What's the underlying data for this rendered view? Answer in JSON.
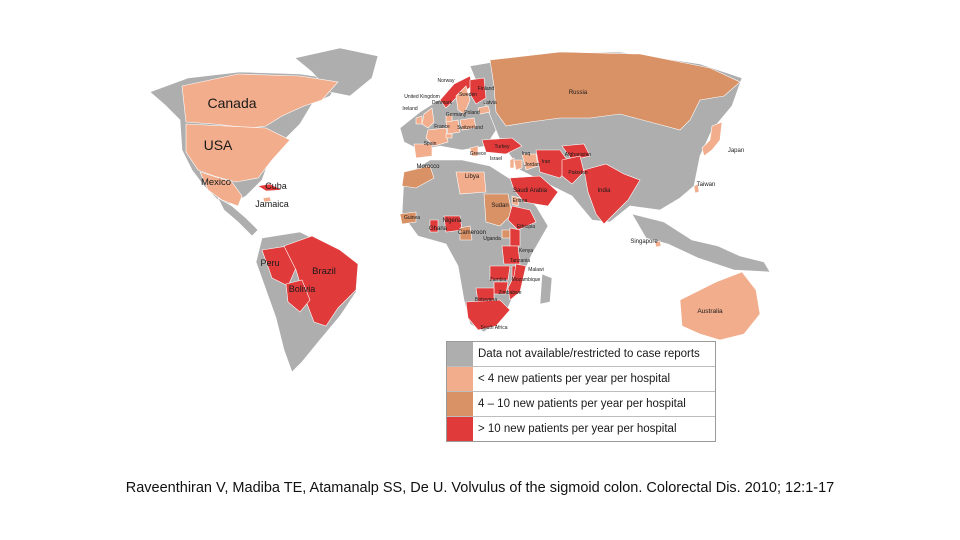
{
  "colors": {
    "no_data": "#aeaeae",
    "low": "#f2ad8c",
    "mid": "#d99166",
    "high": "#e03a3a",
    "ocean": "#ffffff"
  },
  "countries": [
    {
      "key": "canada",
      "label": "Canada",
      "category": "low"
    },
    {
      "key": "usa",
      "label": "USA",
      "category": "low"
    },
    {
      "key": "mexico",
      "label": "Mexico",
      "category": "low"
    },
    {
      "key": "cuba",
      "label": "Cuba",
      "category": "high"
    },
    {
      "key": "jamaica",
      "label": "Jamaica",
      "category": "low"
    },
    {
      "key": "peru",
      "label": "Peru",
      "category": "high"
    },
    {
      "key": "brazil",
      "label": "Brazil",
      "category": "high"
    },
    {
      "key": "bolivia",
      "label": "Bolivia",
      "category": "high"
    },
    {
      "key": "norway",
      "label": "Norway",
      "category": "high"
    },
    {
      "key": "finland",
      "label": "Finland",
      "category": "high"
    },
    {
      "key": "sweden",
      "label": "Sweden",
      "category": "low"
    },
    {
      "key": "united_kingdom",
      "label": "United Kingdom",
      "category": "low"
    },
    {
      "key": "ireland",
      "label": "Ireland",
      "category": "low"
    },
    {
      "key": "denmark",
      "label": "Denmark",
      "category": "low"
    },
    {
      "key": "latvia",
      "label": "Latvia",
      "category": "low"
    },
    {
      "key": "germany",
      "label": "Germany",
      "category": "low"
    },
    {
      "key": "poland",
      "label": "Poland",
      "category": "low"
    },
    {
      "key": "france",
      "label": "France",
      "category": "low"
    },
    {
      "key": "switzerland",
      "label": "Switzerland",
      "category": "low"
    },
    {
      "key": "spain",
      "label": "Spain",
      "category": "low"
    },
    {
      "key": "greece",
      "label": "Greece",
      "category": "low"
    },
    {
      "key": "turkey",
      "label": "Turkey",
      "category": "high"
    },
    {
      "key": "israel",
      "label": "Israel",
      "category": "low"
    },
    {
      "key": "jordan",
      "label": "Jordan",
      "category": "low"
    },
    {
      "key": "iran",
      "label": "Iran",
      "category": "high"
    },
    {
      "key": "iraq",
      "label": "Iraq",
      "category": "low"
    },
    {
      "key": "afghanistan",
      "label": "Afghanistan",
      "category": "high"
    },
    {
      "key": "pakistan",
      "label": "Pakistan",
      "category": "high"
    },
    {
      "key": "india",
      "label": "India",
      "category": "high"
    },
    {
      "key": "russia",
      "label": "Russia",
      "category": "mid"
    },
    {
      "key": "japan",
      "label": "Japan",
      "category": "low"
    },
    {
      "key": "taiwan",
      "label": "Taiwan",
      "category": "low"
    },
    {
      "key": "singapore",
      "label": "Singapore",
      "category": "low"
    },
    {
      "key": "morocco",
      "label": "Morocco",
      "category": "mid"
    },
    {
      "key": "libya",
      "label": "Libya",
      "category": "low"
    },
    {
      "key": "saudi_arabia",
      "label": "Saudi Arabia",
      "category": "high"
    },
    {
      "key": "sudan",
      "label": "Sudan",
      "category": "mid"
    },
    {
      "key": "eritrea",
      "label": "Eritrea",
      "category": "low"
    },
    {
      "key": "ethiopia",
      "label": "Ethiopia",
      "category": "high"
    },
    {
      "key": "guinea",
      "label": "Guinea",
      "category": "mid"
    },
    {
      "key": "ghana",
      "label": "Ghana",
      "category": "high"
    },
    {
      "key": "nigeria",
      "label": "Nigeria",
      "category": "high"
    },
    {
      "key": "cameroon",
      "label": "Cameroon",
      "category": "mid"
    },
    {
      "key": "uganda",
      "label": "Uganda",
      "category": "mid"
    },
    {
      "key": "kenya",
      "label": "Kenya",
      "category": "high"
    },
    {
      "key": "tanzania",
      "label": "Tanzania",
      "category": "high"
    },
    {
      "key": "malawi",
      "label": "Malawi",
      "category": "high"
    },
    {
      "key": "zambia",
      "label": "Zambia",
      "category": "high"
    },
    {
      "key": "mozambique",
      "label": "Mozambique",
      "category": "high"
    },
    {
      "key": "zimbabwe",
      "label": "Zimbabwe",
      "category": "high"
    },
    {
      "key": "botswana",
      "label": "Botswana",
      "category": "high"
    },
    {
      "key": "south_africa",
      "label": "South Africa",
      "category": "high"
    },
    {
      "key": "australia",
      "label": "Australia",
      "category": "low"
    }
  ],
  "legend": [
    {
      "category": "no_data",
      "label": "Data not available/restricted to case reports"
    },
    {
      "category": "low",
      "label": "< 4 new patients per year per hospital"
    },
    {
      "category": "mid",
      "label": "4 – 10 new patients per year per hospital"
    },
    {
      "category": "high",
      "label": "> 10 new patients per year per hospital"
    }
  ],
  "citation": "Raveenthiran V, Madiba TE, Atamanalp SS, De U. Volvulus of the sigmoid colon.  Colorectal Dis. 2010; 12:1-17"
}
